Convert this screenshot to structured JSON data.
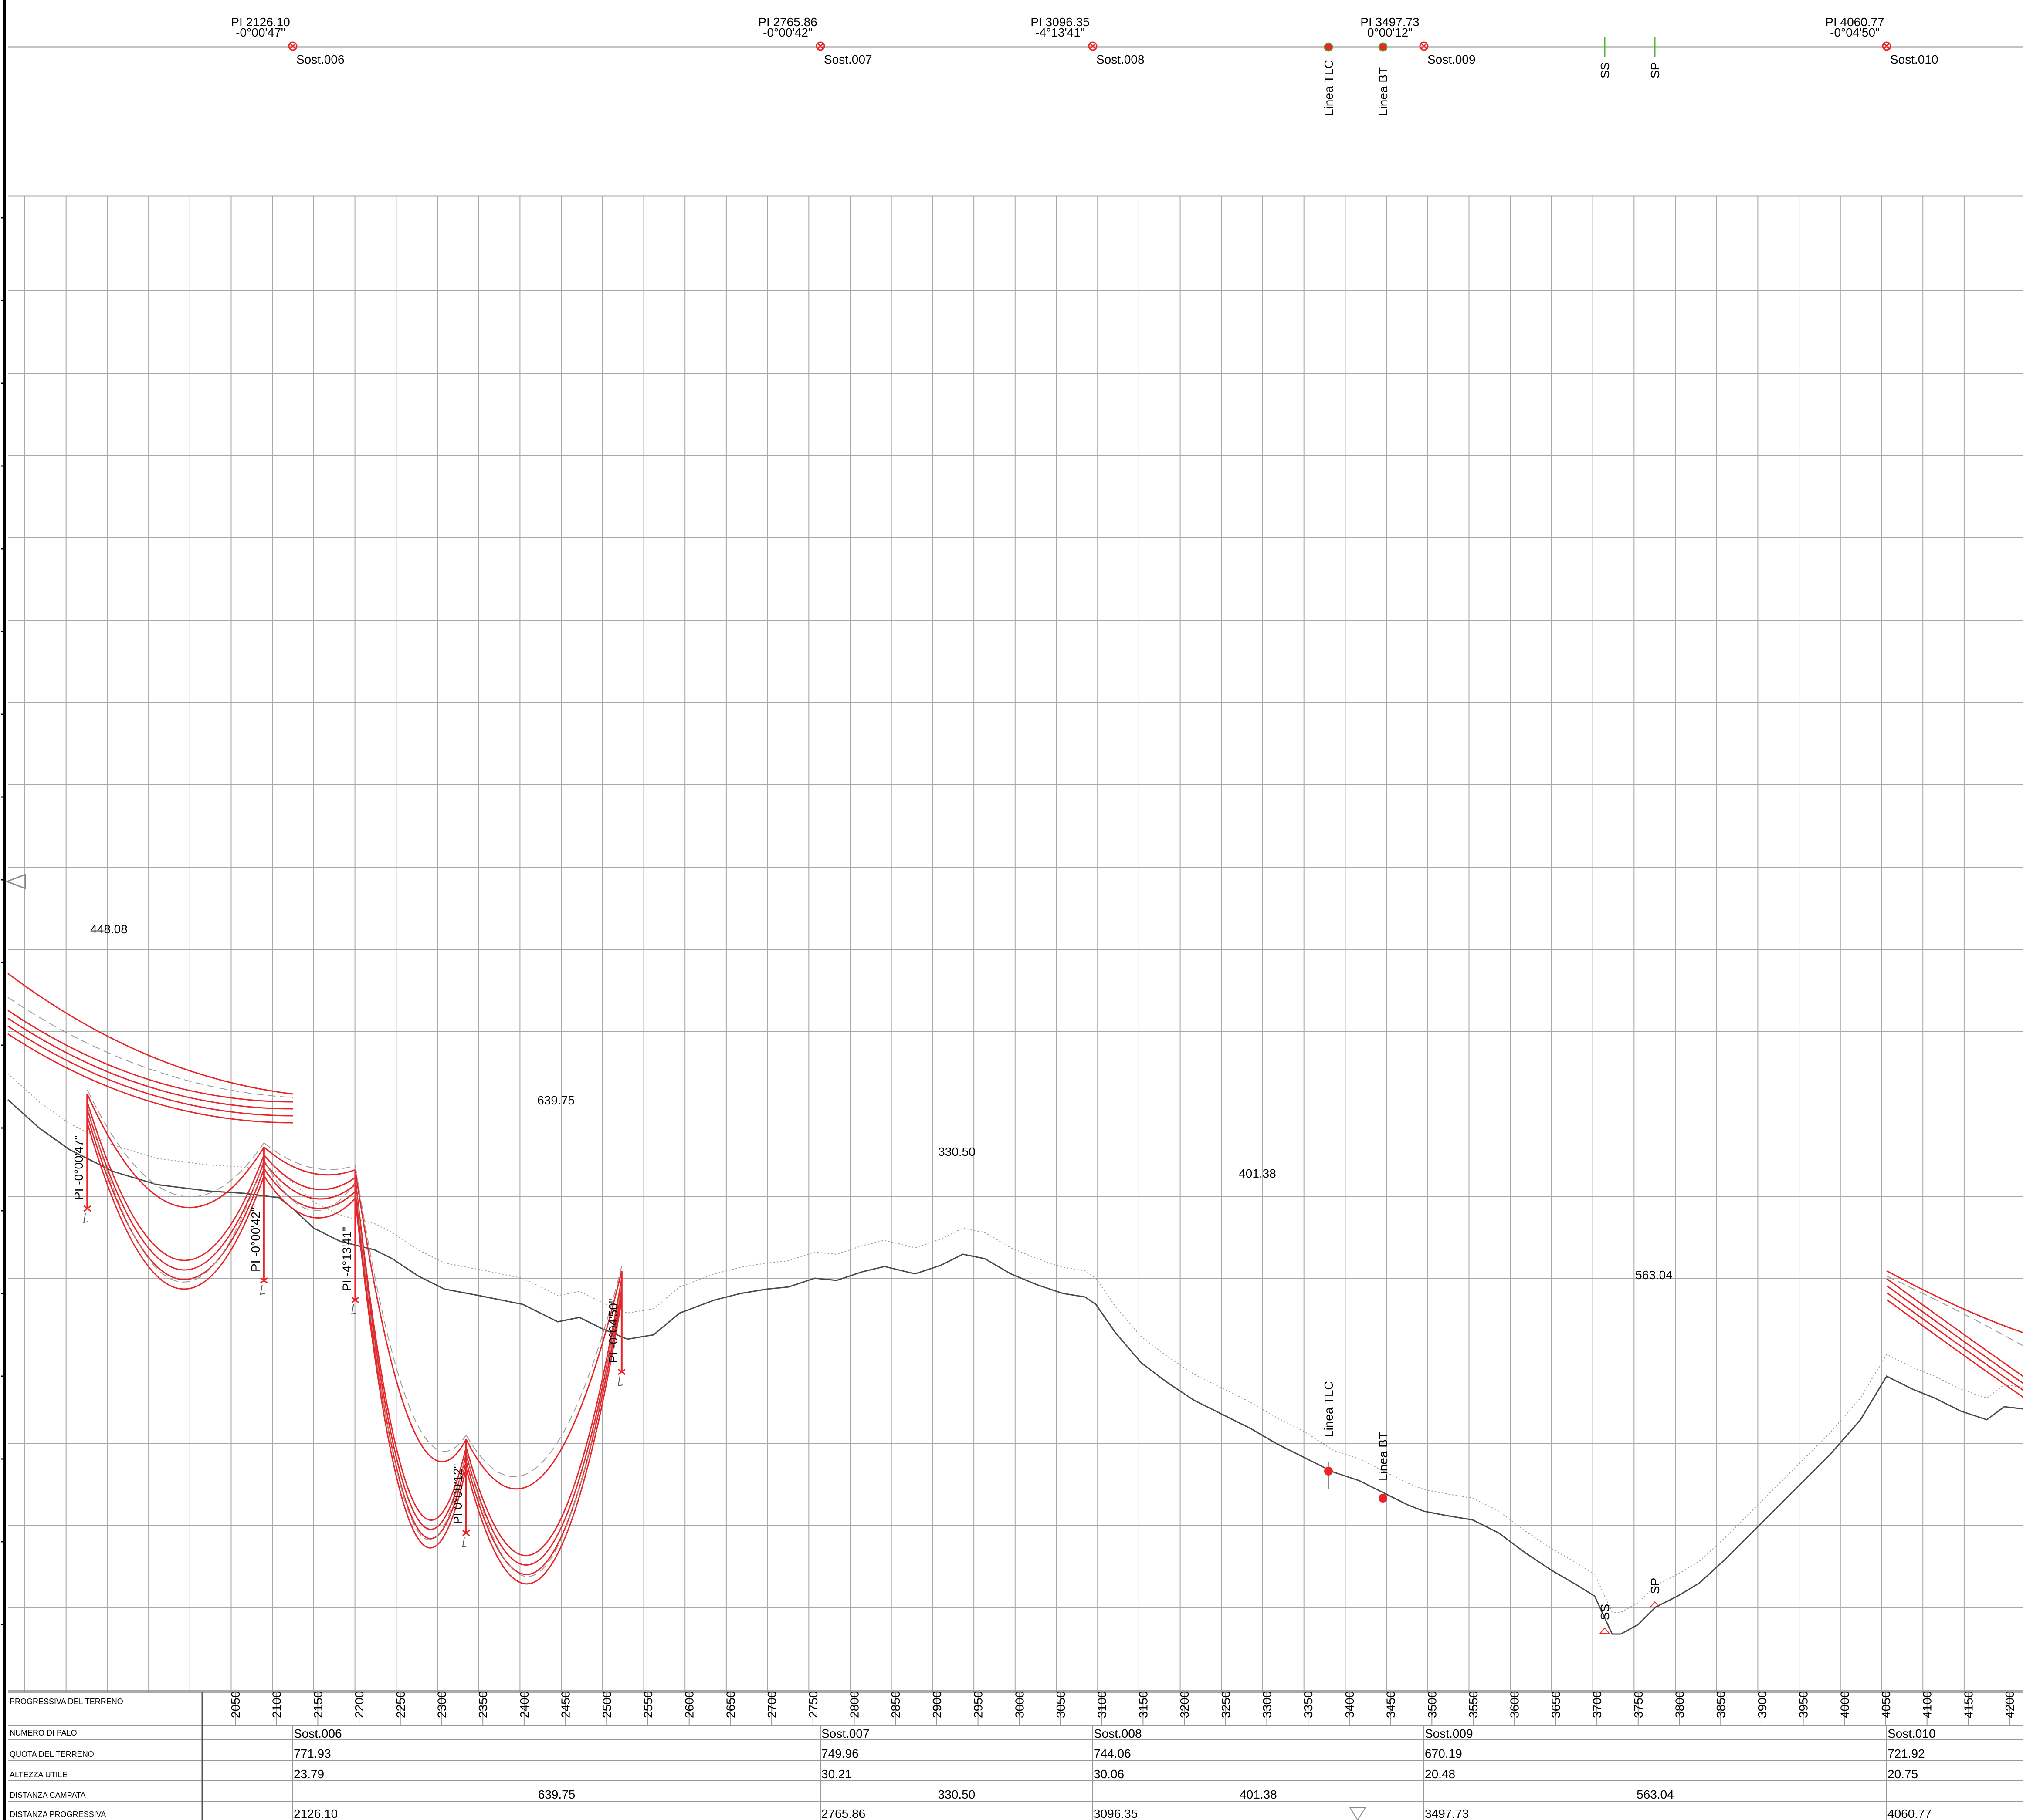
{
  "plan": {
    "pi_markers": [
      {
        "title": "PI 2126.10",
        "angle": "-0°00'47\"",
        "station": "Sost.006"
      },
      {
        "title": "PI 2765.86",
        "angle": "-0°00'42\"",
        "station": "Sost.007"
      },
      {
        "title": "PI 3096.35",
        "angle": "-4°13'41\"",
        "station": "Sost.008"
      },
      {
        "title": "PI 3497.73",
        "angle": "0°00'12\"",
        "station": "Sost.009"
      },
      {
        "title": "PI 4060.77",
        "angle": "-0°04'50\"",
        "station": "Sost.010"
      }
    ],
    "crossings": [
      "Linea TLC",
      "Linea BT",
      "SS",
      "SP"
    ]
  },
  "profile": {
    "span_labels": [
      "448.08",
      "639.75",
      "330.50",
      "401.38",
      "563.04"
    ],
    "pole_labels": [
      "PI -0°00'47\"",
      "PI -0°00'42\"",
      "PI -4°13'41\"",
      "PI 0°00'12\"",
      "PI -0°04'50\""
    ],
    "crossing_labels": [
      "Linea TLC",
      "Linea BT",
      "SS",
      "SP"
    ]
  },
  "table": {
    "row_labels": [
      "PROGRESSIVA DEL TERRENO",
      "NUMERO DI PALO",
      "QUOTA DEL TERRENO",
      "ALTEZZA UTILE",
      "DISTANZA CAMPATA",
      "DISTANZA PROGRESSIVA"
    ],
    "progressive_ticks": [
      "2050",
      "2100",
      "2150",
      "2200",
      "2250",
      "2300",
      "2350",
      "2400",
      "2450",
      "2500",
      "2550",
      "2600",
      "2650",
      "2700",
      "2750",
      "2800",
      "2850",
      "2900",
      "2950",
      "3000",
      "3050",
      "3100",
      "3150",
      "3200",
      "3250",
      "3300",
      "3350",
      "3400",
      "3450",
      "3500",
      "3550",
      "3600",
      "3650",
      "3700",
      "3750",
      "3800",
      "3850",
      "3900",
      "3950",
      "4000",
      "4050",
      "4100",
      "4150",
      "4200"
    ],
    "poles": [
      {
        "numero": "Sost.006",
        "quota": "771.93",
        "altezza": "23.79",
        "progressiva": "2126.10"
      },
      {
        "numero": "Sost.007",
        "quota": "749.96",
        "altezza": "30.21",
        "progressiva": "2765.86"
      },
      {
        "numero": "Sost.008",
        "quota": "744.06",
        "altezza": "30.06",
        "progressiva": "3096.35"
      },
      {
        "numero": "Sost.009",
        "quota": "670.19",
        "altezza": "20.48",
        "progressiva": "3497.73"
      },
      {
        "numero": "Sost.010",
        "quota": "721.92",
        "altezza": "20.75",
        "progressiva": "4060.77"
      }
    ],
    "campate": [
      "639.75",
      "330.50",
      "401.38",
      "563.04"
    ]
  },
  "colors": {
    "conductor": "#e8262a",
    "grid": "#a8a8a8",
    "ground": "#4a4a4a",
    "dashed": "#9a9a9a"
  }
}
